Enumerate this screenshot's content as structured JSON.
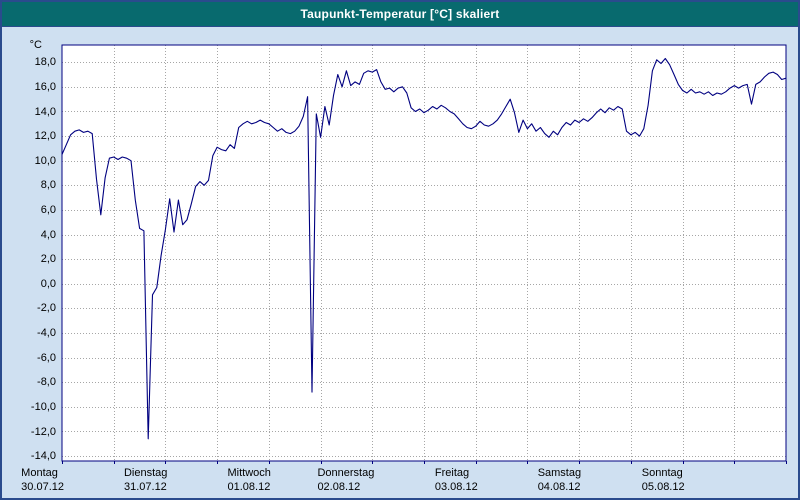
{
  "window": {
    "title": "Taupunkt-Temperatur [°C] skaliert"
  },
  "colors": {
    "titlebar": "#086a6e",
    "title_text": "#ffffff",
    "background": "#cfe0f1",
    "plot_background": "#ffffff",
    "border": "#2a4b8d",
    "plot_border": "#000080",
    "grid": "#a6a6a6",
    "line": "#000080",
    "axis_text": "#000000"
  },
  "chart_data": {
    "type": "line",
    "title": "Taupunkt-Temperatur [°C] skaliert",
    "y_unit": "°C",
    "xlabel": "",
    "ylabel": "°C",
    "ylim": [
      -14.4,
      19.4
    ],
    "ytick_values": [
      18,
      16,
      14,
      12,
      10,
      8,
      6,
      4,
      2,
      0,
      -2,
      -4,
      -6,
      -8,
      -10,
      -12,
      -14
    ],
    "ytick_labels": [
      "18,0",
      "16,0",
      "14,0",
      "12,0",
      "10,0",
      "8,0",
      "6,0",
      "4,0",
      "2,0",
      "0,0",
      "-2,0",
      "-4,0",
      "-6,0",
      "-8,0",
      "-10,0",
      "-12,0",
      "-14,0"
    ],
    "grid": "dotted, horizontal every 2 °C, vertical every 12 h",
    "legend": "none",
    "x_unit": "hours since Montag 30.07.12 00:00",
    "x_total_hours": 168,
    "x_gridline_step_hours": 12,
    "x_days": [
      {
        "weekday": "Montag",
        "date": "30.07.12"
      },
      {
        "weekday": "Dienstag",
        "date": "31.07.12"
      },
      {
        "weekday": "Mittwoch",
        "date": "01.08.12"
      },
      {
        "weekday": "Donnerstag",
        "date": "02.08.12"
      },
      {
        "weekday": "Freitag",
        "date": "03.08.12"
      },
      {
        "weekday": "Samstag",
        "date": "04.08.12"
      },
      {
        "weekday": "Sonntag",
        "date": "05.08.12"
      }
    ],
    "series": [
      {
        "name": "Taupunkt-Temperatur",
        "color": "#000080",
        "values": [
          10.5,
          11.3,
          12.1,
          12.4,
          12.5,
          12.3,
          12.4,
          12.2,
          8.5,
          5.6,
          8.6,
          10.2,
          10.3,
          10.1,
          10.3,
          10.2,
          10.0,
          6.8,
          4.5,
          4.3,
          -12.6,
          -0.9,
          -0.3,
          2.3,
          4.4,
          6.9,
          4.2,
          6.8,
          4.8,
          5.2,
          6.5,
          7.9,
          8.3,
          8.0,
          8.4,
          10.4,
          11.1,
          10.9,
          10.8,
          11.3,
          11.0,
          12.7,
          13.0,
          13.2,
          13.0,
          13.1,
          13.3,
          13.1,
          13.0,
          12.7,
          12.4,
          12.6,
          12.3,
          12.2,
          12.4,
          12.8,
          13.6,
          15.2,
          -8.8,
          13.8,
          11.9,
          14.4,
          12.9,
          15.3,
          17.0,
          16.0,
          17.3,
          16.1,
          16.4,
          16.2,
          17.1,
          17.3,
          17.2,
          17.4,
          16.4,
          15.8,
          15.9,
          15.6,
          15.9,
          16.0,
          15.5,
          14.3,
          14.0,
          14.2,
          13.9,
          14.1,
          14.4,
          14.2,
          14.5,
          14.3,
          14.0,
          13.8,
          13.4,
          13.0,
          12.7,
          12.6,
          12.8,
          13.2,
          12.9,
          12.8,
          13.0,
          13.3,
          13.8,
          14.4,
          15.0,
          13.9,
          12.3,
          13.3,
          12.6,
          13.0,
          12.4,
          12.7,
          12.2,
          11.9,
          12.4,
          12.1,
          12.7,
          13.1,
          12.9,
          13.3,
          13.1,
          13.4,
          13.2,
          13.5,
          13.9,
          14.2,
          13.9,
          14.3,
          14.1,
          14.4,
          14.2,
          12.4,
          12.1,
          12.3,
          12.0,
          12.6,
          14.5,
          17.3,
          18.2,
          17.9,
          18.3,
          17.8,
          17.0,
          16.2,
          15.7,
          15.5,
          15.8,
          15.5,
          15.6,
          15.4,
          15.6,
          15.3,
          15.5,
          15.4,
          15.6,
          15.9,
          16.1,
          15.9,
          16.1,
          16.2,
          14.6,
          16.2,
          16.4,
          16.8,
          17.1,
          17.2,
          17.0,
          16.6,
          16.7
        ]
      }
    ]
  }
}
